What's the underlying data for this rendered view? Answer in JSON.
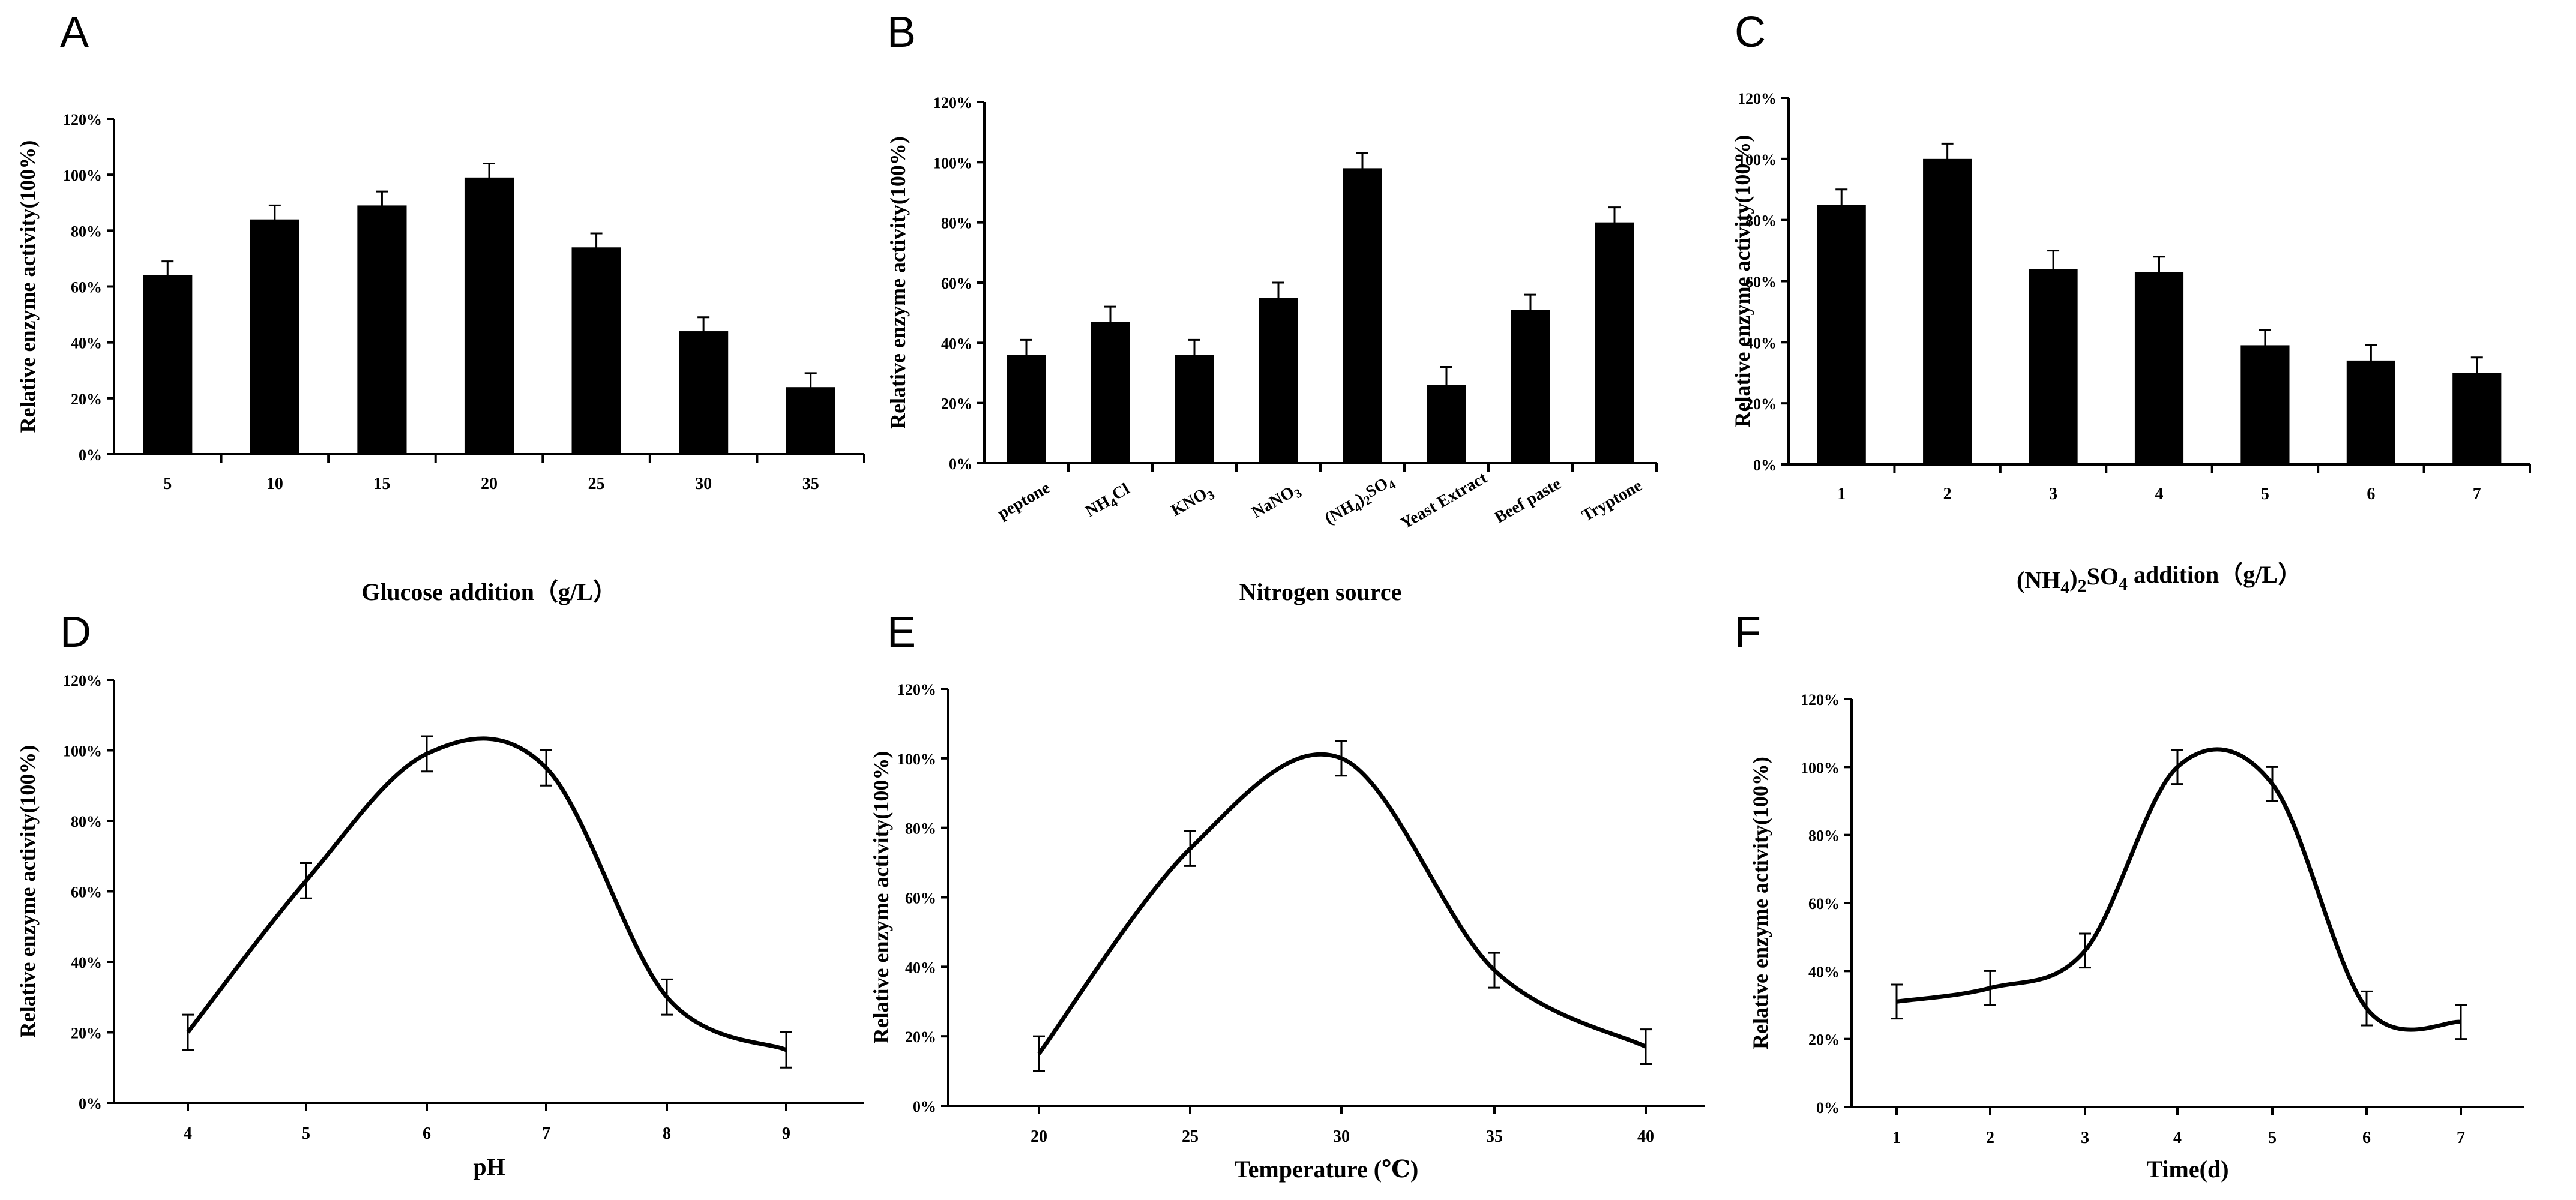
{
  "chart_data": [
    {
      "panel": "A",
      "type": "bar",
      "categories": [
        "5",
        "10",
        "15",
        "20",
        "25",
        "30",
        "35"
      ],
      "values": [
        64,
        84,
        89,
        99,
        74,
        44,
        24
      ],
      "errors": [
        5,
        5,
        5,
        5,
        5,
        5,
        5
      ],
      "ylim": [
        0,
        120
      ],
      "yticks": [
        "0%",
        "20%",
        "40%",
        "60%",
        "80%",
        "100%",
        "120%"
      ],
      "xlabel": "Glucose addition（g/L）",
      "ylabel": "Relative enzyme activity(100%)"
    },
    {
      "panel": "B",
      "type": "bar",
      "categories": [
        "peptone",
        "NH4Cl",
        "KNO3",
        "NaNO3",
        "(NH4)2SO4",
        "Yeast Extract",
        "Beef paste",
        "Tryptone"
      ],
      "values": [
        36,
        47,
        36,
        55,
        98,
        26,
        51,
        80
      ],
      "errors": [
        5,
        5,
        5,
        5,
        5,
        6,
        5,
        5
      ],
      "ylim": [
        0,
        120
      ],
      "yticks": [
        "0%",
        "20%",
        "40%",
        "60%",
        "80%",
        "100%",
        "120%"
      ],
      "xlabel": "Nitrogen source",
      "ylabel": "Relative enzyme activity(100%)"
    },
    {
      "panel": "C",
      "type": "bar",
      "categories": [
        "1",
        "2",
        "3",
        "4",
        "5",
        "6",
        "7"
      ],
      "values": [
        85,
        100,
        64,
        63,
        39,
        34,
        30
      ],
      "errors": [
        5,
        5,
        6,
        5,
        5,
        5,
        5
      ],
      "ylim": [
        0,
        120
      ],
      "yticks": [
        "0%",
        "20%",
        "40%",
        "60%",
        "80%",
        "100%",
        "120%"
      ],
      "xlabel": "(NH4)2SO4 addition（g/L）",
      "ylabel": "Relative enzyme activity(100%)"
    },
    {
      "panel": "D",
      "type": "line",
      "x": [
        4,
        5,
        6,
        7,
        8,
        9
      ],
      "values": [
        20,
        63,
        99,
        95,
        30,
        15
      ],
      "errors": [
        5,
        5,
        5,
        5,
        5,
        5
      ],
      "ylim": [
        0,
        120
      ],
      "yticks": [
        "0%",
        "20%",
        "40%",
        "60%",
        "80%",
        "100%",
        "120%"
      ],
      "xticks": [
        "4",
        "5",
        "6",
        "7",
        "8",
        "9"
      ],
      "xlabel": "pH",
      "ylabel": "Relative enzyme activity(100%)"
    },
    {
      "panel": "E",
      "type": "line",
      "x": [
        20,
        25,
        30,
        35,
        40
      ],
      "values": [
        15,
        74,
        100,
        39,
        17
      ],
      "errors": [
        5,
        5,
        5,
        5,
        5
      ],
      "ylim": [
        0,
        120
      ],
      "yticks": [
        "0%",
        "20%",
        "40%",
        "60%",
        "80%",
        "100%",
        "120%"
      ],
      "xticks": [
        "20",
        "25",
        "30",
        "35",
        "40"
      ],
      "xlabel": "Temperature (℃)",
      "ylabel": "Relative enzyme activity(100%)"
    },
    {
      "panel": "F",
      "type": "line",
      "x": [
        1,
        2,
        3,
        4,
        5,
        6,
        7
      ],
      "values": [
        31,
        35,
        46,
        100,
        95,
        29,
        25
      ],
      "errors": [
        5,
        5,
        5,
        5,
        5,
        5,
        5
      ],
      "ylim": [
        0,
        120
      ],
      "yticks": [
        "0%",
        "20%",
        "40%",
        "60%",
        "80%",
        "100%",
        "120%"
      ],
      "xticks": [
        "1",
        "2",
        "3",
        "4",
        "5",
        "6",
        "7"
      ],
      "xlabel": "Time(d)",
      "ylabel": "Relative enzyme activity(100%)"
    }
  ]
}
